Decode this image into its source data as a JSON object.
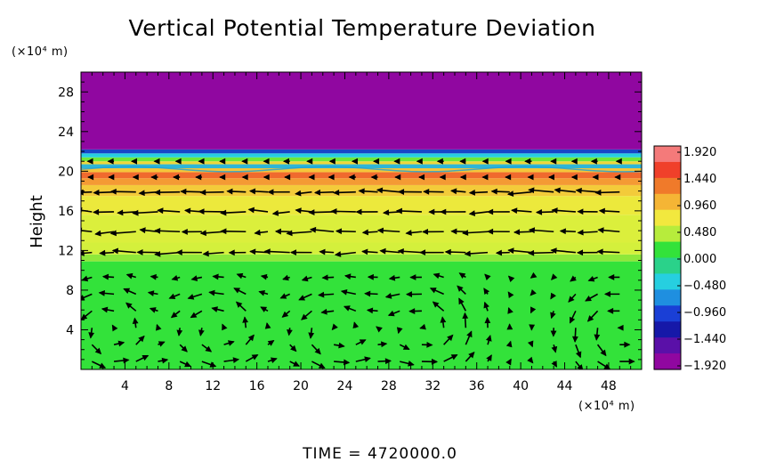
{
  "chart_data": {
    "type": "heatmap",
    "title": "Vertical Potential Temperature Deviation",
    "ylabel": "Height",
    "xunit": "(×10⁴ m)",
    "yunit": "(×10⁴ m)",
    "footer": "TIME = 4720000.0",
    "xlim": [
      0,
      51
    ],
    "ylim": [
      0,
      30
    ],
    "xticks": [
      4,
      8,
      12,
      16,
      20,
      24,
      28,
      32,
      36,
      40,
      44,
      48
    ],
    "yticks": [
      4,
      8,
      12,
      16,
      20,
      24,
      28
    ],
    "colorbar": {
      "labels": [
        "1.920",
        "1.440",
        "0.960",
        "0.480",
        "0.000",
        "−0.480",
        "−0.960",
        "−1.440",
        "−1.920"
      ],
      "range": [
        -1.92,
        1.92
      ]
    },
    "layers": [
      {
        "y0": 0,
        "y1": 10.9,
        "value": 0.06,
        "color": "#33e23a"
      },
      {
        "y0": 10.9,
        "y1": 11.6,
        "value": 0.25,
        "color": "#8ee83a"
      },
      {
        "y0": 11.6,
        "y1": 12.8,
        "value": 0.5,
        "color": "#d4f03c"
      },
      {
        "y0": 12.8,
        "y1": 15.6,
        "value": 0.62,
        "color": "#dbef3c"
      },
      {
        "y0": 15.6,
        "y1": 17.5,
        "value": 0.7,
        "color": "#ece93c"
      },
      {
        "y0": 17.5,
        "y1": 18.6,
        "value": 0.95,
        "color": "#f3cb3a"
      },
      {
        "y0": 18.6,
        "y1": 19.3,
        "value": 1.3,
        "color": "#f49a34"
      },
      {
        "y0": 19.3,
        "y1": 19.9,
        "value": 1.45,
        "color": "#f06a2e"
      },
      {
        "y0": 19.9,
        "y1": 20.3,
        "value": 0.8,
        "color": "#f5c53a"
      },
      {
        "y0": 20.3,
        "y1": 20.7,
        "value": -0.7,
        "color": "#2fb6d6"
      },
      {
        "y0": 20.7,
        "y1": 21.0,
        "value": 0.9,
        "color": "#efd63b"
      },
      {
        "y0": 21.0,
        "y1": 21.4,
        "value": 0.3,
        "color": "#6fe83a"
      },
      {
        "y0": 21.4,
        "y1": 21.8,
        "value": -0.5,
        "color": "#26cfe0"
      },
      {
        "y0": 21.8,
        "y1": 22.2,
        "value": -1.3,
        "color": "#1846c8"
      },
      {
        "y0": 22.2,
        "y1": 30,
        "value": -1.92,
        "color": "#9007a0"
      }
    ],
    "wind_columns_x": [
      1,
      3,
      5,
      7,
      9,
      11,
      13,
      15,
      17,
      19,
      21,
      23,
      25,
      27,
      29,
      31,
      33,
      35,
      37,
      39,
      41,
      43,
      45,
      47,
      49
    ],
    "wind_rows_y": [
      0.8,
      2.5,
      4.2,
      5.9,
      7.6,
      9.3,
      11.8,
      13.9,
      15.9,
      17.9,
      19.4,
      21.0
    ],
    "vortex_centers_x": [
      2.5,
      12.5,
      23,
      31.5,
      49
    ],
    "vortex_center_y": 4.0
  }
}
